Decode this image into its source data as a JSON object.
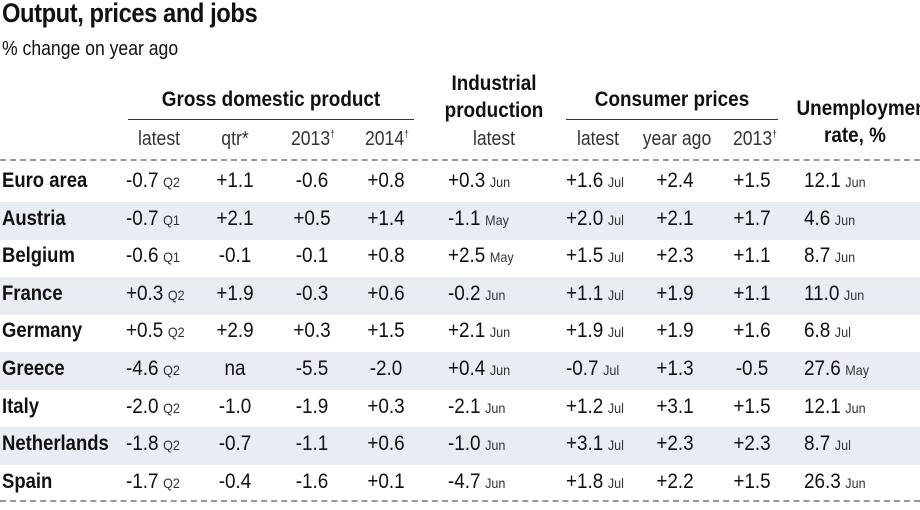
{
  "chart_data": {
    "type": "table",
    "title": "Output, prices and jobs",
    "subtitle": "% change on year ago",
    "column_groups": [
      {
        "label": "Gross domestic product",
        "columns": [
          "latest",
          "qtr*",
          "2013†",
          "2014†"
        ]
      },
      {
        "label": "Industrial production",
        "columns": [
          "latest"
        ]
      },
      {
        "label": "Consumer prices",
        "columns": [
          "latest",
          "year ago",
          "2013†"
        ]
      },
      {
        "label": "Unemployment rate, %",
        "columns": []
      }
    ],
    "rows": [
      {
        "country": "Euro area",
        "gdp_latest": "-0.7",
        "gdp_latest_period": "Q2",
        "gdp_qtr": "+1.1",
        "gdp_2013": "-0.6",
        "gdp_2014": "+0.8",
        "ip_latest": "+0.3",
        "ip_period": "Jun",
        "cp_latest": "+1.6",
        "cp_period": "Jul",
        "cp_year_ago": "+2.4",
        "cp_2013": "+1.5",
        "unemployment": "12.1",
        "unemp_period": "Jun"
      },
      {
        "country": "Austria",
        "gdp_latest": "-0.7",
        "gdp_latest_period": "Q1",
        "gdp_qtr": "+2.1",
        "gdp_2013": "+0.5",
        "gdp_2014": "+1.4",
        "ip_latest": "-1.1",
        "ip_period": "May",
        "cp_latest": "+2.0",
        "cp_period": "Jul",
        "cp_year_ago": "+2.1",
        "cp_2013": "+1.7",
        "unemployment": "4.6",
        "unemp_period": "Jun"
      },
      {
        "country": "Belgium",
        "gdp_latest": "-0.6",
        "gdp_latest_period": "Q1",
        "gdp_qtr": "-0.1",
        "gdp_2013": "-0.1",
        "gdp_2014": "+0.8",
        "ip_latest": "+2.5",
        "ip_period": "May",
        "cp_latest": "+1.5",
        "cp_period": "Jul",
        "cp_year_ago": "+2.3",
        "cp_2013": "+1.1",
        "unemployment": "8.7",
        "unemp_period": "Jun"
      },
      {
        "country": "France",
        "gdp_latest": "+0.3",
        "gdp_latest_period": "Q2",
        "gdp_qtr": "+1.9",
        "gdp_2013": "-0.3",
        "gdp_2014": "+0.6",
        "ip_latest": "-0.2",
        "ip_period": "Jun",
        "cp_latest": "+1.1",
        "cp_period": "Jul",
        "cp_year_ago": "+1.9",
        "cp_2013": "+1.1",
        "unemployment": "11.0",
        "unemp_period": "Jun"
      },
      {
        "country": "Germany",
        "gdp_latest": "+0.5",
        "gdp_latest_period": "Q2",
        "gdp_qtr": "+2.9",
        "gdp_2013": "+0.3",
        "gdp_2014": "+1.5",
        "ip_latest": "+2.1",
        "ip_period": "Jun",
        "cp_latest": "+1.9",
        "cp_period": "Jul",
        "cp_year_ago": "+1.9",
        "cp_2013": "+1.6",
        "unemployment": "6.8",
        "unemp_period": "Jul"
      },
      {
        "country": "Greece",
        "gdp_latest": "-4.6",
        "gdp_latest_period": "Q2",
        "gdp_qtr": "na",
        "gdp_2013": "-5.5",
        "gdp_2014": "-2.0",
        "ip_latest": "+0.4",
        "ip_period": "Jun",
        "cp_latest": "-0.7",
        "cp_period": "Jul",
        "cp_year_ago": "+1.3",
        "cp_2013": "-0.5",
        "unemployment": "27.6",
        "unemp_period": "May"
      },
      {
        "country": "Italy",
        "gdp_latest": "-2.0",
        "gdp_latest_period": "Q2",
        "gdp_qtr": "-1.0",
        "gdp_2013": "-1.9",
        "gdp_2014": "+0.3",
        "ip_latest": "-2.1",
        "ip_period": "Jun",
        "cp_latest": "+1.2",
        "cp_period": "Jul",
        "cp_year_ago": "+3.1",
        "cp_2013": "+1.5",
        "unemployment": "12.1",
        "unemp_period": "Jun"
      },
      {
        "country": "Netherlands",
        "gdp_latest": "-1.8",
        "gdp_latest_period": "Q2",
        "gdp_qtr": "-0.7",
        "gdp_2013": "-1.1",
        "gdp_2014": "+0.6",
        "ip_latest": "-1.0",
        "ip_period": "Jun",
        "cp_latest": "+3.1",
        "cp_period": "Jul",
        "cp_year_ago": "+2.3",
        "cp_2013": "+2.3",
        "unemployment": "8.7",
        "unemp_period": "Jul"
      },
      {
        "country": "Spain",
        "gdp_latest": "-1.7",
        "gdp_latest_period": "Q2",
        "gdp_qtr": "-0.4",
        "gdp_2013": "-1.6",
        "gdp_2014": "+0.1",
        "ip_latest": "-4.7",
        "ip_period": "Jun",
        "cp_latest": "+1.8",
        "cp_period": "Jul",
        "cp_year_ago": "+2.2",
        "cp_2013": "+1.5",
        "unemployment": "26.3",
        "unemp_period": "Jun"
      }
    ]
  },
  "labels": {
    "gdp_group": "Gross domestic product",
    "ip_group_line1": "Industrial",
    "ip_group_line2": "production",
    "cp_group": "Consumer prices",
    "unemp_line1": "Unemployment",
    "unemp_line2": "rate, %",
    "gdp_latest": "latest",
    "gdp_qtr": "qtr*",
    "gdp_2013": "2013",
    "gdp_2014": "2014",
    "ip_latest": "latest",
    "cp_latest": "latest",
    "cp_year_ago": "year ago",
    "cp_2013": "2013",
    "dagger": "†"
  },
  "colors": {
    "band": "#e8edf4",
    "text": "#111111",
    "rule": "#999999"
  }
}
